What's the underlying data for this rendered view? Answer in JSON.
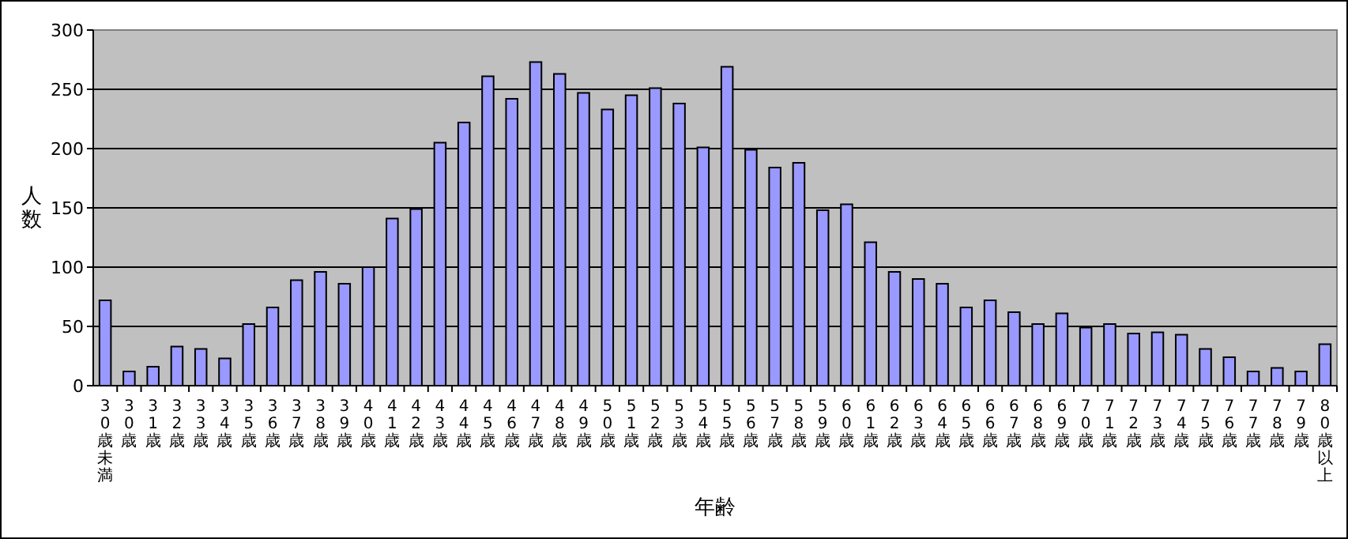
{
  "chart_data": {
    "type": "bar",
    "xlabel": "年齢",
    "ylabel": "人数",
    "categories": [
      "30歳未満",
      "30歳",
      "31歳",
      "32歳",
      "33歳",
      "34歳",
      "35歳",
      "36歳",
      "37歳",
      "38歳",
      "39歳",
      "40歳",
      "41歳",
      "42歳",
      "43歳",
      "44歳",
      "45歳",
      "46歳",
      "47歳",
      "48歳",
      "49歳",
      "50歳",
      "51歳",
      "52歳",
      "53歳",
      "54歳",
      "55歳",
      "56歳",
      "57歳",
      "58歳",
      "59歳",
      "60歳",
      "61歳",
      "62歳",
      "63歳",
      "64歳",
      "65歳",
      "66歳",
      "67歳",
      "68歳",
      "69歳",
      "70歳",
      "71歳",
      "72歳",
      "73歳",
      "74歳",
      "75歳",
      "76歳",
      "77歳",
      "78歳",
      "79歳",
      "80歳以上"
    ],
    "values": [
      72,
      12,
      16,
      33,
      31,
      23,
      52,
      66,
      89,
      96,
      86,
      100,
      141,
      149,
      205,
      222,
      261,
      242,
      273,
      263,
      247,
      233,
      245,
      251,
      238,
      201,
      269,
      199,
      184,
      188,
      148,
      153,
      121,
      96,
      90,
      86,
      66,
      72,
      62,
      52,
      61,
      49,
      52,
      44,
      45,
      43,
      31,
      24,
      12,
      15,
      12,
      35
    ],
    "color": "#9999ff",
    "ylim": [
      0,
      300
    ],
    "yticks": [
      0,
      50,
      100,
      150,
      200,
      250,
      300
    ],
    "grid": "y"
  }
}
